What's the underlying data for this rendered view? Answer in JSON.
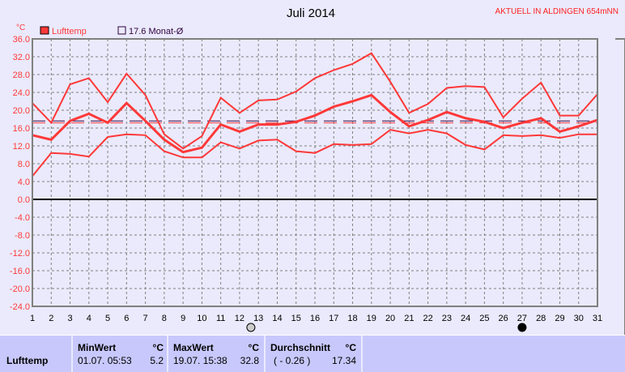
{
  "header": {
    "title": "Juli 2014",
    "station": "AKTUELL IN ALDINGEN 654mNN"
  },
  "colors": {
    "series": "#ff3838",
    "monthAvg": "#300040",
    "axis": "#808080",
    "background": "#eaeafc",
    "table": "#c8c8fc"
  },
  "chart_data": {
    "type": "line",
    "title": "Juli 2014",
    "ylabel": "°C",
    "ylim": [
      -24,
      36
    ],
    "yticks": [
      "36.0",
      "32.0",
      "28.0",
      "24.0",
      "20.0",
      "16.0",
      "12.0",
      "8.0",
      "4.0",
      "0.0",
      "-4.0",
      "-8.0",
      "-12.0",
      "-16.0",
      "-20.0",
      "-24.0"
    ],
    "x": [
      1,
      2,
      3,
      4,
      5,
      6,
      7,
      8,
      9,
      10,
      11,
      12,
      13,
      14,
      15,
      16,
      17,
      18,
      19,
      20,
      21,
      22,
      23,
      24,
      25,
      26,
      27,
      28,
      29,
      30,
      31
    ],
    "grid": true,
    "legend": {
      "placement": "top-left",
      "entries": [
        {
          "label": "Lufttemp",
          "color": "#ff3838"
        },
        {
          "label": "17.6 Monat-Ø",
          "color": "#300040"
        }
      ]
    },
    "series": [
      {
        "kind": "max",
        "values": [
          21.6,
          17.2,
          25.8,
          27.2,
          21.8,
          28.2,
          23.4,
          14.6,
          11.4,
          14.2,
          22.8,
          19.4,
          22.2,
          22.4,
          24.2,
          27.2,
          29.0,
          30.4,
          32.8,
          26.4,
          19.4,
          21.4,
          25.0,
          25.4,
          25.2,
          18.4,
          22.6,
          26.2,
          18.8,
          18.8,
          23.6
        ]
      },
      {
        "kind": "avg",
        "values": [
          14.4,
          13.4,
          17.6,
          19.2,
          17.2,
          21.6,
          17.6,
          13.4,
          10.6,
          11.6,
          16.8,
          15.2,
          16.8,
          16.8,
          17.4,
          18.8,
          20.8,
          22.0,
          23.4,
          19.6,
          16.4,
          17.8,
          19.6,
          18.2,
          17.4,
          16.0,
          17.2,
          18.2,
          15.2,
          16.4,
          17.8
        ]
      },
      {
        "kind": "min",
        "values": [
          5.2,
          10.4,
          10.2,
          9.6,
          14.0,
          14.6,
          14.4,
          10.8,
          9.4,
          9.4,
          12.8,
          11.4,
          13.2,
          13.4,
          10.8,
          10.4,
          12.4,
          12.2,
          12.4,
          15.6,
          14.8,
          15.6,
          14.8,
          12.2,
          11.2,
          14.4,
          14.2,
          14.4,
          13.8,
          14.6,
          14.6
        ]
      }
    ],
    "reference_lines": [
      {
        "label": "17.6 Monat-Ø",
        "value": 17.6,
        "color": "#300040"
      },
      {
        "value": 17.34,
        "color": "#ff3838"
      }
    ],
    "moon_phases": [
      {
        "day": 12.6,
        "phase": "full-moon"
      },
      {
        "day": 27,
        "phase": "new-moon"
      }
    ]
  },
  "table": {
    "row_label": "Lufttemp",
    "min": {
      "header": "MinWert",
      "unit": "°C",
      "date": "01.07.  05:53",
      "value": "5.2"
    },
    "max": {
      "header": "MaxWert",
      "unit": "°C",
      "date": "19.07.  15:38",
      "value": "32.8"
    },
    "avg": {
      "header": "Durchschnitt",
      "unit": "°C",
      "delta": "( - 0.26 )",
      "value": "17.34"
    }
  }
}
